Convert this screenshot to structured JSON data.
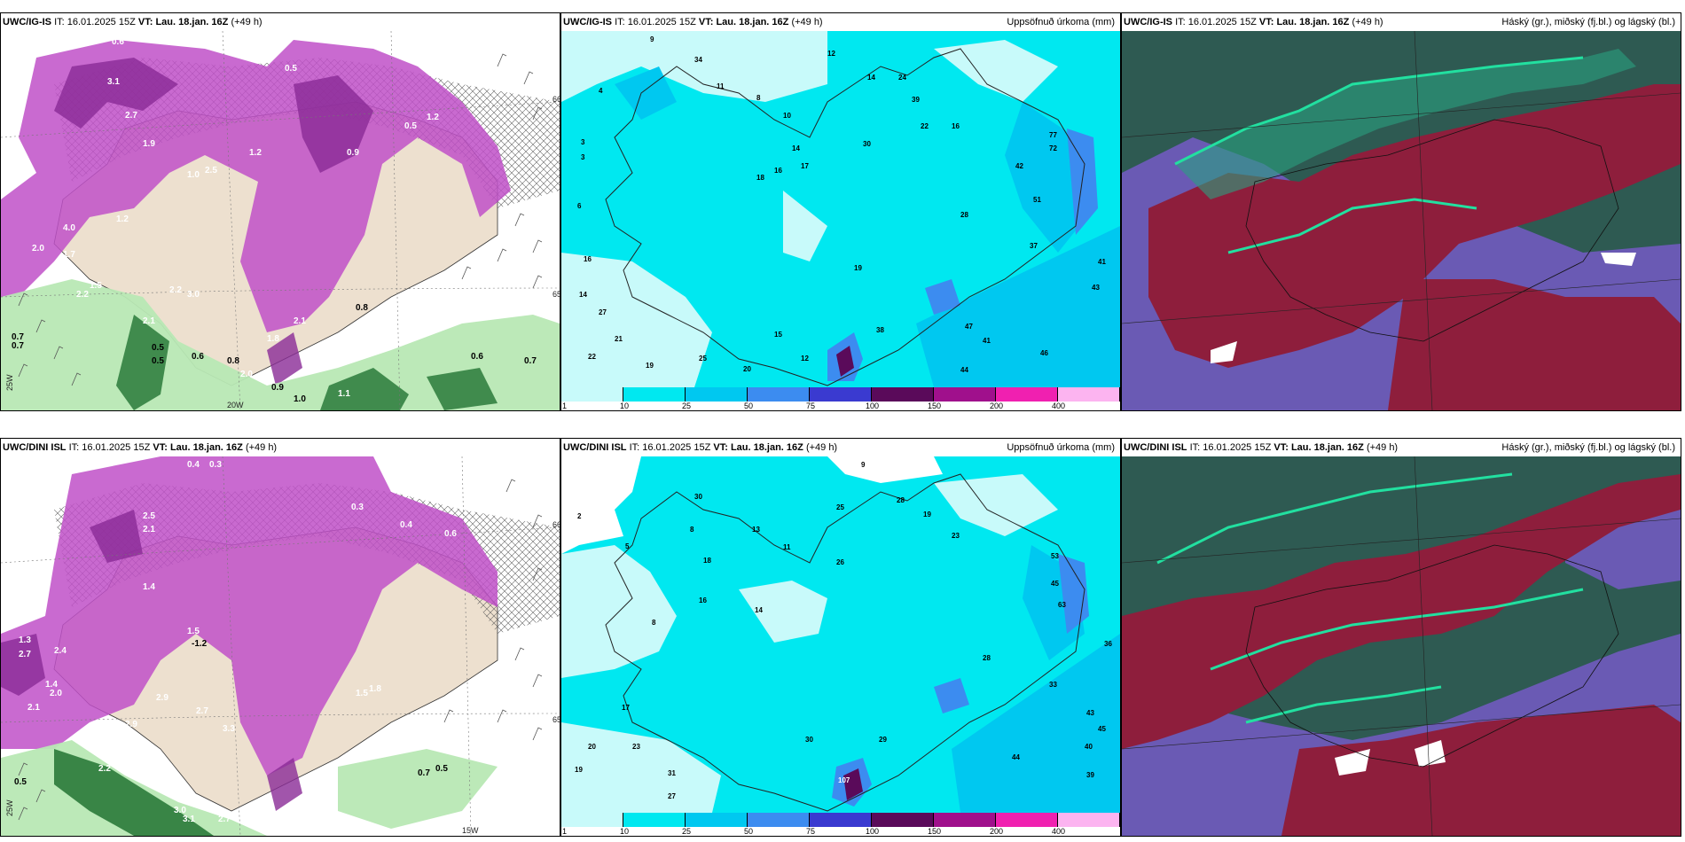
{
  "panels": [
    {
      "model": "UWC/IG-IS",
      "it_label": "IT:",
      "it": "16.01.2025 15Z",
      "vt_label": "VT:",
      "vt": "Lau. 18.jan. 16Z",
      "lead": "(+49 h)",
      "right": "",
      "kind": "precip-type"
    },
    {
      "model": "UWC/IG-IS",
      "it_label": "IT:",
      "it": "16.01.2025 15Z",
      "vt_label": "VT:",
      "vt": "Lau. 18.jan. 16Z",
      "lead": "(+49 h)",
      "right": "Uppsöfnuð úrkoma (mm)",
      "kind": "accum"
    },
    {
      "model": "UWC/IG-IS",
      "it_label": "IT:",
      "it": "16.01.2025 15Z",
      "vt_label": "VT:",
      "vt": "Lau. 18.jan. 16Z",
      "lead": "(+49 h)",
      "right": "Háský (gr.), miðský (fj.bl.) og lágský (bl.)",
      "kind": "clouds"
    },
    {
      "model": "UWC/DINI ISL",
      "it_label": "IT:",
      "it": "16.01.2025 15Z",
      "vt_label": "VT:",
      "vt": "Lau. 18.jan. 16Z",
      "lead": "(+49 h)",
      "right": "",
      "kind": "precip-type"
    },
    {
      "model": "UWC/DINI ISL",
      "it_label": "IT:",
      "it": "16.01.2025 15Z",
      "vt_label": "VT:",
      "vt": "Lau. 18.jan. 16Z",
      "lead": "(+49 h)",
      "right": "Uppsöfnuð úrkoma (mm)",
      "kind": "accum"
    },
    {
      "model": "UWC/DINI ISL",
      "it_label": "IT:",
      "it": "16.01.2025 15Z",
      "vt_label": "VT:",
      "vt": "Lau. 18.jan. 16Z",
      "lead": "(+49 h)",
      "right": "Háský (gr.), miðský (fj.bl.) og lágský (bl.)",
      "kind": "clouds"
    }
  ],
  "colorbar": {
    "ticks": [
      "1",
      "10",
      "25",
      "50",
      "75",
      "100",
      "150",
      "200",
      "400"
    ],
    "colors": [
      "#c8fafa",
      "#00e8f0",
      "#00c8f0",
      "#3c8cf0",
      "#3a3ad0",
      "#5a0a5a",
      "#a0108c",
      "#f020b0",
      "#fcb4f0"
    ]
  },
  "map_labels": {
    "top_left": {
      "lon_left": "25W",
      "lon_mid": "20W",
      "lat_a": "65N",
      "lat_b": "66N"
    },
    "bottom_left": {
      "lon_left": "25W",
      "lon_mid": "15W",
      "lat_a": "65N",
      "lat_b": "66N"
    }
  },
  "values": {
    "p0": [
      "0.6",
      "0.5",
      "0.5",
      "3.1",
      "2.7",
      "1.9",
      "0.5",
      "1.2",
      "0.9",
      "1.2",
      "1.0",
      "2.5",
      "4.0",
      "1.2",
      "2.0",
      "1.7",
      "1.5",
      "2.2",
      "0.7",
      "0.7",
      "2.1",
      "0.5",
      "0.5",
      "0.6",
      "0.8",
      "2.0",
      "0.9",
      "1.0",
      "1.1",
      "3.0",
      "2.2",
      "0.8",
      "0.6",
      "0.7",
      "2.1",
      "1.8"
    ],
    "p1": [
      "9",
      "4",
      "3",
      "3",
      "6",
      "34",
      "11",
      "8",
      "10",
      "12",
      "14",
      "24",
      "14",
      "16",
      "18",
      "17",
      "19",
      "22",
      "30",
      "39",
      "16",
      "28",
      "77",
      "72",
      "42",
      "51",
      "37",
      "41",
      "43",
      "16",
      "14",
      "27",
      "21",
      "22",
      "19",
      "25",
      "20",
      "12",
      "15",
      "38",
      "47",
      "41",
      "44",
      "46"
    ],
    "p3": [
      "0.4",
      "0.3",
      "2.5",
      "2.1",
      "1.4",
      "2.7",
      "2.4",
      "1.3",
      "2.1",
      "1.4",
      "2.0",
      "1.5",
      "-1.2",
      "2.9",
      "3.3",
      "2.7",
      "2.9",
      "1.5",
      "1.8",
      "1.0",
      "0.5",
      "2.2",
      "2.7",
      "3.0",
      "3.1",
      "0.7",
      "0.5",
      "0.4",
      "0.6",
      "0.3"
    ],
    "p4": [
      "2",
      "9",
      "5",
      "8",
      "13",
      "30",
      "8",
      "11",
      "14",
      "16",
      "18",
      "25",
      "26",
      "28",
      "19",
      "23",
      "53",
      "45",
      "63",
      "36",
      "33",
      "43",
      "45",
      "40",
      "44",
      "39",
      "28",
      "29",
      "31",
      "23",
      "20",
      "19",
      "30",
      "17",
      "27",
      "107"
    ]
  }
}
